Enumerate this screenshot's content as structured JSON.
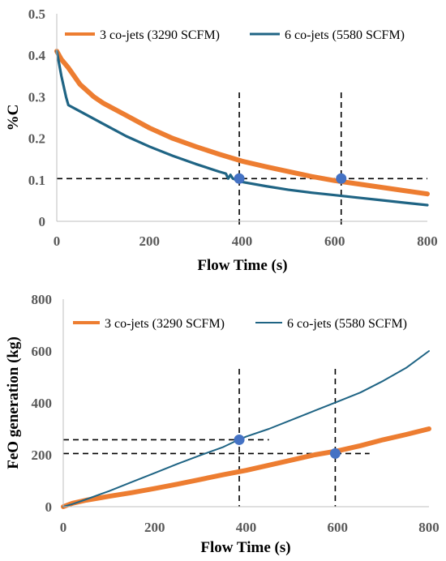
{
  "chart_data": [
    {
      "type": "line",
      "title": "",
      "xlabel": "Flow Time (s)",
      "ylabel": "%C",
      "xlim": [
        0,
        800
      ],
      "ylim": [
        0,
        0.5
      ],
      "xticks": [
        "0",
        "200",
        "400",
        "600",
        "800"
      ],
      "yticks": [
        "0",
        "0.1",
        "0.2",
        "0.3",
        "0.4",
        "0.5"
      ],
      "legend_position": "top",
      "series": [
        {
          "name": "3 co-jets (3290 SCFM)",
          "color": "#ED7D31",
          "x": [
            0,
            10,
            25,
            50,
            80,
            100,
            150,
            200,
            250,
            300,
            350,
            400,
            450,
            500,
            550,
            600,
            650,
            700,
            750,
            800
          ],
          "y": [
            0.41,
            0.39,
            0.37,
            0.33,
            0.3,
            0.285,
            0.255,
            0.225,
            0.2,
            0.18,
            0.162,
            0.145,
            0.132,
            0.12,
            0.108,
            0.098,
            0.09,
            0.082,
            0.074,
            0.066
          ]
        },
        {
          "name": "6 co-jets (5580 SCFM)",
          "color": "#1F6484",
          "x": [
            0,
            10,
            20,
            25,
            50,
            100,
            150,
            200,
            250,
            300,
            350,
            365,
            370,
            375,
            380,
            400,
            450,
            500,
            550,
            600,
            650,
            700,
            750,
            800
          ],
          "y": [
            0.41,
            0.35,
            0.3,
            0.28,
            0.265,
            0.235,
            0.205,
            0.18,
            0.158,
            0.138,
            0.12,
            0.115,
            0.103,
            0.112,
            0.103,
            0.095,
            0.085,
            0.076,
            0.069,
            0.063,
            0.057,
            0.051,
            0.045,
            0.039
          ]
        }
      ],
      "markers": [
        {
          "x": 380,
          "y": 0.103,
          "color": "#4472C4"
        },
        {
          "x": 600,
          "y": 0.103,
          "color": "#4472C4"
        }
      ],
      "reference_lines": {
        "vertical_x": [
          380,
          600
        ],
        "horizontal_y": [
          0.103
        ]
      }
    },
    {
      "type": "line",
      "title": "",
      "xlabel": "Flow Time (s)",
      "ylabel": "FeO generation (kg)",
      "xlim": [
        0,
        800
      ],
      "ylim": [
        0,
        800
      ],
      "xticks": [
        "0",
        "200",
        "400",
        "600",
        "800"
      ],
      "yticks": [
        "0",
        "200",
        "400",
        "600",
        "800"
      ],
      "legend_position": "top",
      "series": [
        {
          "name": "3 co-jets (3290 SCFM)",
          "color": "#ED7D31",
          "x": [
            0,
            20,
            50,
            100,
            150,
            200,
            250,
            300,
            350,
            400,
            450,
            500,
            550,
            600,
            650,
            700,
            750,
            800
          ],
          "y": [
            0,
            13,
            25,
            40,
            54,
            70,
            87,
            105,
            123,
            140,
            160,
            180,
            200,
            215,
            235,
            258,
            278,
            300
          ]
        },
        {
          "name": "6 co-jets (5580 SCFM)",
          "color": "#1F6484",
          "x": [
            0,
            20,
            50,
            100,
            150,
            200,
            250,
            300,
            350,
            380,
            400,
            450,
            500,
            550,
            600,
            650,
            700,
            750,
            800
          ],
          "y": [
            0,
            10,
            28,
            60,
            95,
            130,
            165,
            198,
            230,
            255,
            270,
            300,
            335,
            370,
            405,
            440,
            485,
            535,
            600
          ]
        }
      ],
      "markers": [
        {
          "x": 385,
          "y": 258,
          "color": "#4472C4"
        },
        {
          "x": 595,
          "y": 205,
          "color": "#4472C4"
        }
      ],
      "reference_lines": {
        "vertical_x": [
          385,
          595
        ],
        "horizontal_y": [
          258,
          205
        ]
      }
    }
  ]
}
